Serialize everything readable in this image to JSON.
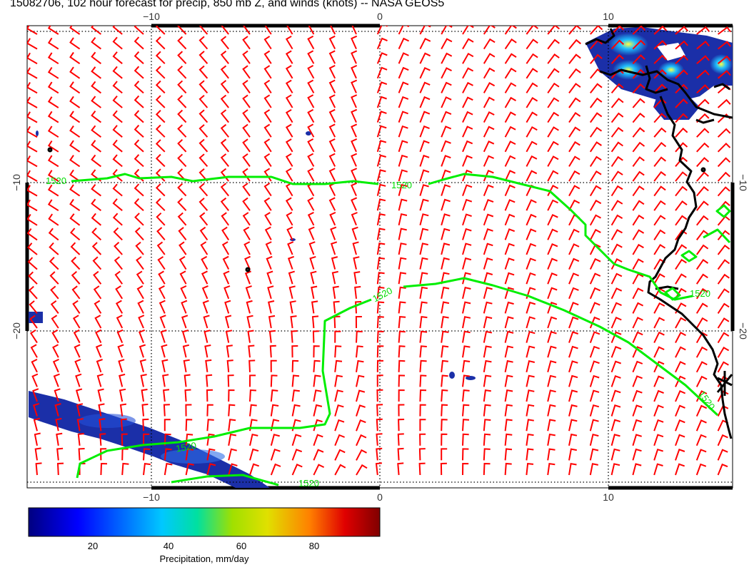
{
  "title": "15082706, 102 hour forecast for precip, 850 mb Z, and winds (knots) -- NASA GEOS5",
  "map": {
    "x_ticks": [
      "−10",
      "0",
      "10"
    ],
    "y_ticks": [
      "−10",
      "−20"
    ],
    "contour_label": "1520",
    "colors": {
      "coastline": "#000000",
      "contour": "#00ee00",
      "wind_barbs": "#ff0000",
      "gridlines": "#000000",
      "precip_fill": "#1b2fa8"
    }
  },
  "colorbar": {
    "ticks": [
      "20",
      "40",
      "60",
      "80"
    ],
    "label": "Precipitation, mm/day",
    "colors": [
      "#000080",
      "#0000ff",
      "#00c8ff",
      "#00e0a0",
      "#a0e000",
      "#e0e000",
      "#ff8000",
      "#e00000",
      "#800000"
    ]
  }
}
